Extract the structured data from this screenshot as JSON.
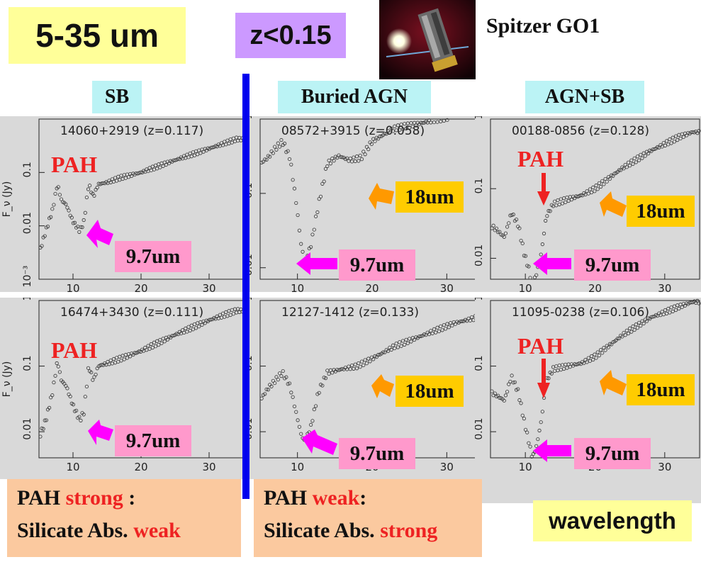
{
  "header": {
    "range_label": "5-35 um",
    "redshift_label": "z<0.15",
    "telescope_label": "Spitzer GO1",
    "telescope_image_icon": "spitzer-telescope-image"
  },
  "columns": {
    "sb": "SB",
    "buried_agn": "Buried AGN",
    "agn_sb": "AGN+SB"
  },
  "annotations": {
    "pah": "PAH",
    "silicate_9_7": "9.7um",
    "silicate_18": "18um"
  },
  "summary": {
    "left_line1_a": "PAH ",
    "left_line1_b": "strong",
    "left_line1_c": " :",
    "left_line2_a": "Silicate Abs. ",
    "left_line2_b": "weak",
    "right_line1_a": "PAH ",
    "right_line1_b": "weak",
    "right_line1_c": ":",
    "right_line2_a": "Silicate Abs. ",
    "right_line2_b": "strong"
  },
  "wavelength_label": "wavelength",
  "colors": {
    "panel_bg": "#d9d9d9",
    "divider": "#0000ee",
    "pah_red": "#ee2222",
    "arrow_magenta": "#ff00ff",
    "arrow_orange": "#ff9900",
    "pink_box": "#ff99cc",
    "orange_box": "#ffcc00"
  },
  "chart_data": [
    {
      "type": "scatter",
      "title": "14060+2919 (z=0.117)",
      "ylabel": "F_ν (Jy)",
      "xlim": [
        5,
        35
      ],
      "ylim": [
        0.001,
        1
      ],
      "log_y": true,
      "xticks": [
        10,
        20,
        30
      ],
      "yticks": [
        "10^-3",
        "0.01",
        "0.1"
      ],
      "x": [
        5,
        6,
        7,
        7.7,
        8.3,
        9,
        10,
        11,
        11.6,
        12.3,
        13,
        13.7,
        15,
        17,
        20,
        25,
        30,
        34
      ],
      "y": [
        0.003,
        0.008,
        0.02,
        0.06,
        0.03,
        0.025,
        0.012,
        0.008,
        0.012,
        0.06,
        0.035,
        0.06,
        0.065,
        0.08,
        0.1,
        0.17,
        0.28,
        0.42
      ]
    },
    {
      "type": "scatter",
      "title": "08572+3915 (z=0.058)",
      "xlim": [
        5,
        35
      ],
      "ylim": [
        0.007,
        1
      ],
      "log_y": true,
      "xticks": [
        10,
        20,
        30
      ],
      "yticks": [
        "0.01",
        "0.1",
        "1"
      ],
      "x": [
        5,
        6,
        7,
        8,
        9,
        9.8,
        10.5,
        11,
        11.8,
        12.8,
        14,
        15.5,
        17,
        18.5,
        20,
        23,
        27,
        31,
        34
      ],
      "y": [
        0.25,
        0.3,
        0.4,
        0.5,
        0.3,
        0.08,
        0.02,
        0.012,
        0.02,
        0.07,
        0.25,
        0.32,
        0.28,
        0.3,
        0.5,
        0.75,
        0.9,
        1.1,
        1.2
      ]
    },
    {
      "type": "scatter",
      "title": "00188-0856 (z=0.128)",
      "xlim": [
        5,
        35
      ],
      "ylim": [
        0.005,
        1
      ],
      "log_y": true,
      "xticks": [
        10,
        20,
        30
      ],
      "yticks": [
        "0.01",
        "0.1",
        "1"
      ],
      "x": [
        5,
        6,
        7,
        8,
        9,
        9.8,
        10.5,
        11,
        11.6,
        12.3,
        13,
        14,
        16,
        18,
        20,
        24,
        28,
        32,
        34
      ],
      "y": [
        0.03,
        0.025,
        0.02,
        0.045,
        0.03,
        0.012,
        0.007,
        0.004,
        0.006,
        0.012,
        0.04,
        0.06,
        0.07,
        0.08,
        0.1,
        0.2,
        0.35,
        0.55,
        0.65
      ]
    },
    {
      "type": "scatter",
      "title": "16474+3430 (z=0.111)",
      "ylabel": "F_ν (Jy)",
      "xlim": [
        5,
        35
      ],
      "ylim": [
        0.004,
        1
      ],
      "log_y": true,
      "xticks": [
        10,
        20,
        30
      ],
      "yticks": [
        "0.01",
        "0.1",
        "1"
      ],
      "x": [
        5,
        6,
        7,
        7.7,
        8.3,
        9,
        10,
        11,
        11.6,
        12.3,
        13,
        13.7,
        15,
        17,
        20,
        25,
        30,
        34
      ],
      "y": [
        0.008,
        0.015,
        0.04,
        0.12,
        0.06,
        0.05,
        0.025,
        0.015,
        0.02,
        0.1,
        0.06,
        0.1,
        0.11,
        0.13,
        0.17,
        0.3,
        0.5,
        0.7
      ]
    },
    {
      "type": "scatter",
      "title": "12127-1412 (z=0.133)",
      "xlim": [
        5,
        35
      ],
      "ylim": [
        0.004,
        1
      ],
      "log_y": true,
      "xticks": [
        10,
        20,
        30
      ],
      "yticks": [
        "0.01",
        "0.1",
        "1"
      ],
      "x": [
        5,
        6,
        7,
        8,
        9,
        9.8,
        10.5,
        11,
        11.8,
        12.8,
        14,
        16,
        18,
        20,
        23,
        27,
        31,
        34
      ],
      "y": [
        0.03,
        0.045,
        0.06,
        0.08,
        0.05,
        0.02,
        0.009,
        0.007,
        0.012,
        0.04,
        0.08,
        0.09,
        0.1,
        0.13,
        0.2,
        0.3,
        0.45,
        0.55
      ]
    },
    {
      "type": "scatter",
      "title": "11095-0238 (z=0.106)",
      "xlim": [
        5,
        35
      ],
      "ylim": [
        0.004,
        1
      ],
      "log_y": true,
      "xticks": [
        10,
        20,
        30
      ],
      "yticks": [
        "0.01",
        "0.1",
        "1"
      ],
      "x": [
        5,
        6,
        7,
        8,
        9,
        9.8,
        10.5,
        11,
        11.6,
        12.3,
        13,
        14,
        16,
        18,
        20,
        24,
        28,
        32,
        34
      ],
      "y": [
        0.04,
        0.035,
        0.03,
        0.07,
        0.04,
        0.015,
        0.007,
        0.004,
        0.006,
        0.015,
        0.06,
        0.09,
        0.1,
        0.11,
        0.14,
        0.3,
        0.55,
        0.8,
        0.95
      ]
    }
  ]
}
